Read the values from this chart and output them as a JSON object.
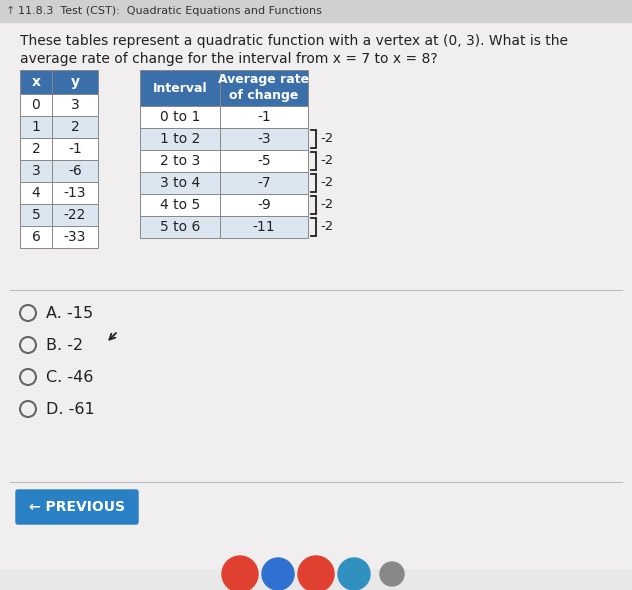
{
  "title_bar_text": "11.8.3  Test (CST):  Quadratic Equations and Functions",
  "title_bar_bg": "#d0d0d0",
  "title_bar_color": "#333333",
  "question_line1": "These tables represent a quadratic function with a vertex at (0, 3). What is the",
  "question_line2": "average rate of change for the interval from x = 7 to x = 8?",
  "table1_headers": [
    "x",
    "y"
  ],
  "table1_data": [
    [
      "0",
      "3"
    ],
    [
      "1",
      "2"
    ],
    [
      "2",
      "-1"
    ],
    [
      "3",
      "-6"
    ],
    [
      "4",
      "-13"
    ],
    [
      "5",
      "-22"
    ],
    [
      "6",
      "-33"
    ]
  ],
  "table2_col1_header": "Interval",
  "table2_col2_header": "Average rate\nof change",
  "table2_data": [
    [
      "0 to 1",
      "-1"
    ],
    [
      "1 to 2",
      "-3"
    ],
    [
      "2 to 3",
      "-5"
    ],
    [
      "3 to 4",
      "-7"
    ],
    [
      "4 to 5",
      "-9"
    ],
    [
      "5 to 6",
      "-11"
    ]
  ],
  "bracket_values": [
    "-2",
    "-2",
    "-2",
    "-2",
    "-2"
  ],
  "choices": [
    "A. -15",
    "B. -2",
    "C. -46",
    "D. -61"
  ],
  "cursor_at_choice": 1,
  "button_text": "← PREVIOUS",
  "button_bg": "#2980c4",
  "button_text_color": "#ffffff",
  "bg_color": "#e8e8e8",
  "content_bg": "#f0eeee",
  "table_header_bg": "#3a6faa",
  "table_header_color": "#ffffff",
  "table_row_bg_odd": "#ffffff",
  "table_row_bg_even": "#dce6f1",
  "table_border_color": "#888888",
  "divider_color": "#bbbbbb",
  "text_color": "#222222",
  "title_icon_color": "#555555"
}
